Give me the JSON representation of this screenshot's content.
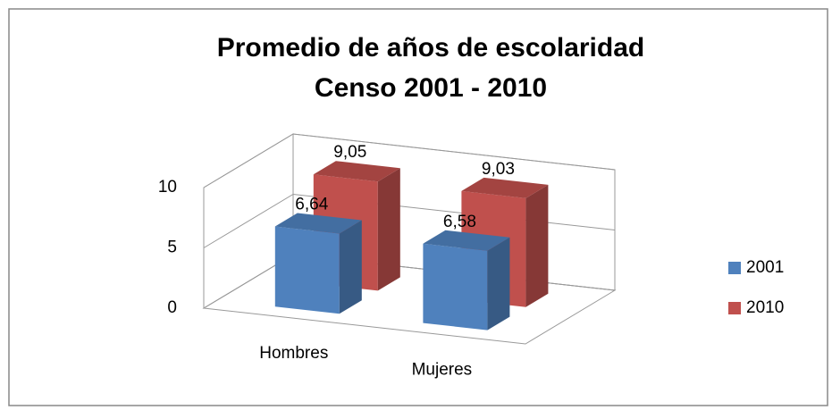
{
  "chart_data": {
    "type": "bar3d",
    "title": [
      "Promedio de años de escolaridad",
      "Censo 2001 - 2010"
    ],
    "categories": [
      "Hombres",
      "Mujeres"
    ],
    "series": [
      {
        "name": "2001",
        "color": "#4f81bd",
        "values": [
          6.64,
          6.58
        ],
        "value_labels": [
          "6,64",
          "6,58"
        ]
      },
      {
        "name": "2010",
        "color": "#c0504d",
        "values": [
          9.05,
          9.03
        ],
        "value_labels": [
          "9,05",
          "9,03"
        ]
      }
    ],
    "ylim": [
      0,
      10
    ],
    "yticks": [
      0,
      5,
      10
    ],
    "grid": true,
    "legend": "right"
  }
}
